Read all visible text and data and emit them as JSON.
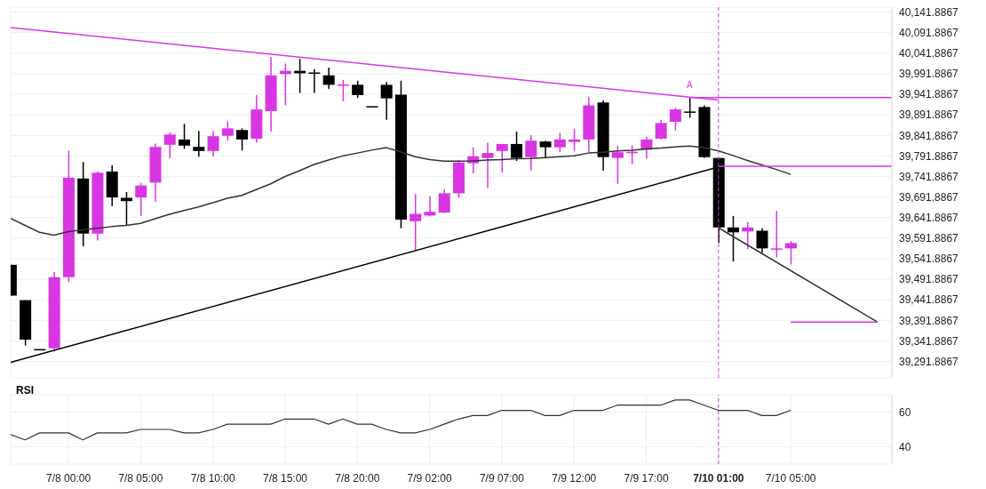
{
  "chart_data": [
    {
      "type": "candlestick",
      "tick_labels": "y",
      "grid": true,
      "categories": [
        null,
        null,
        null,
        null,
        "7/8 00:00",
        null,
        null,
        null,
        null,
        "7/8 05:00",
        null,
        null,
        null,
        null,
        "7/8 10:00",
        null,
        null,
        null,
        null,
        "7/8 15:00",
        null,
        null,
        null,
        null,
        "7/8 20:00",
        null,
        null,
        null,
        null,
        "7/9 02:00",
        null,
        null,
        null,
        null,
        "7/9 07:00",
        null,
        null,
        null,
        null,
        "7/9 12:00",
        null,
        null,
        null,
        null,
        "7/9 17:00",
        null,
        null,
        null,
        null,
        "7/10 01:00",
        null,
        null,
        null,
        null,
        "7/10 05:00",
        null,
        null,
        null,
        null,
        null,
        null,
        null
      ],
      "ohlc": [
        [
          39527,
          39527,
          39452,
          39452
        ],
        [
          39441,
          39441,
          39331,
          39345
        ],
        [
          39322,
          39322,
          39322,
          39322
        ],
        [
          39324,
          39510,
          39317,
          39497
        ],
        [
          39497,
          39805,
          39485,
          39739
        ],
        [
          39737,
          39777,
          39572,
          39603
        ],
        [
          39603,
          39754,
          39586,
          39751
        ],
        [
          39754,
          39769,
          39670,
          39691
        ],
        [
          39690,
          39704,
          39623,
          39682
        ],
        [
          39691,
          39726,
          39646,
          39720
        ],
        [
          39727,
          39822,
          39681,
          39814
        ],
        [
          39819,
          39849,
          39786,
          39844
        ],
        [
          39832,
          39870,
          39809,
          39817
        ],
        [
          39814,
          39853,
          39790,
          39804
        ],
        [
          39804,
          39853,
          39790,
          39840
        ],
        [
          39841,
          39876,
          39829,
          39859
        ],
        [
          39855,
          39859,
          39805,
          39832
        ],
        [
          39834,
          39940,
          39824,
          39905
        ],
        [
          39901,
          40033,
          39851,
          39988
        ],
        [
          39991,
          40017,
          39915,
          39999
        ],
        [
          39999,
          40028,
          39945,
          39993
        ],
        [
          39995,
          40003,
          39945,
          39994
        ],
        [
          39988,
          40007,
          39955,
          39965
        ],
        [
          39966,
          39977,
          39925,
          39966
        ],
        [
          39965,
          39975,
          39933,
          39940
        ],
        [
          39913,
          39913,
          39913,
          39913
        ],
        [
          39965,
          39972,
          39880,
          39932
        ],
        [
          39941,
          39975,
          39616,
          39637
        ],
        [
          39633,
          39699,
          39561,
          39651
        ],
        [
          39647,
          39694,
          39645,
          39656
        ],
        [
          39654,
          39711,
          39653,
          39701
        ],
        [
          39701,
          39781,
          39690,
          39776
        ],
        [
          39774,
          39813,
          39749,
          39791
        ],
        [
          39787,
          39824,
          39714,
          39799
        ],
        [
          39804,
          39821,
          39751,
          39821
        ],
        [
          39821,
          39851,
          39780,
          39787
        ],
        [
          39789,
          39842,
          39756,
          39829
        ],
        [
          39827,
          39829,
          39786,
          39813
        ],
        [
          39813,
          39848,
          39801,
          39832
        ],
        [
          39826,
          39858,
          39804,
          39832
        ],
        [
          39832,
          39936,
          39801,
          39915
        ],
        [
          39922,
          39927,
          39756,
          39789
        ],
        [
          39787,
          39817,
          39724,
          39801
        ],
        [
          39802,
          39817,
          39772,
          39802
        ],
        [
          39807,
          39839,
          39785,
          39832
        ],
        [
          39834,
          39880,
          39832,
          39872
        ],
        [
          39875,
          39909,
          39854,
          39905
        ],
        [
          39900,
          39933,
          39885,
          39899
        ],
        [
          39911,
          39915,
          39787,
          39789
        ],
        [
          39787,
          39787,
          39580,
          39618
        ],
        [
          39618,
          39646,
          39535,
          39606
        ],
        [
          39608,
          39631,
          39565,
          39618
        ],
        [
          39610,
          39616,
          39556,
          39567
        ],
        [
          39567,
          39658,
          39545,
          39567
        ],
        [
          39567,
          39585,
          39528,
          39580
        ],
        null,
        null,
        null,
        null,
        null,
        null,
        null
      ],
      "colors": [
        "#000000",
        "#000000",
        "#000000",
        "#d936e3",
        "#d936e3",
        "#000000",
        "#d936e3",
        "#000000",
        "#000000",
        "#d936e3",
        "#d936e3",
        "#d936e3",
        "#000000",
        "#000000",
        "#d936e3",
        "#d936e3",
        "#000000",
        "#d936e3",
        "#d936e3",
        "#d936e3",
        "#000000",
        "#000000",
        "#000000",
        "#d936e3",
        "#000000",
        "#000000",
        "#000000",
        "#000000",
        "#d936e3",
        "#d936e3",
        "#d936e3",
        "#d936e3",
        "#d936e3",
        "#d936e3",
        "#d936e3",
        "#000000",
        "#d936e3",
        "#000000",
        "#d936e3",
        "#d936e3",
        "#d936e3",
        "#000000",
        "#d936e3",
        "#d936e3",
        "#d936e3",
        "#d936e3",
        "#d936e3",
        "#000000",
        "#000000",
        "#000000",
        "#000000",
        "#d936e3",
        "#000000",
        "#d936e3",
        "#d936e3",
        null,
        null,
        null,
        null,
        null,
        null,
        null
      ],
      "series": [
        {
          "type": "line",
          "color": "#333333",
          "values": [
            39640,
            39623,
            39606,
            39599,
            39608,
            39612,
            39616,
            39620,
            39623,
            39628,
            39639,
            39650,
            39659,
            39668,
            39678,
            39689,
            39696,
            39710,
            39724,
            39742,
            39756,
            39771,
            39782,
            39792,
            39799,
            39806,
            39812,
            39802,
            39790,
            39783,
            39779,
            39779,
            39780,
            39782,
            39783,
            39785,
            39786,
            39788,
            39790,
            39792,
            39799,
            39801,
            39804,
            39806,
            39809,
            39811,
            39814,
            39816,
            39812,
            39804,
            39793,
            39781,
            39770,
            39759,
            39747,
            null,
            null,
            null,
            null,
            null,
            null,
            null
          ]
        },
        {
          "type": "line",
          "color": "#d936e3",
          "values": [
            40104,
            null,
            null,
            null,
            null,
            null,
            null,
            null,
            null,
            null,
            null,
            null,
            null,
            null,
            null,
            null,
            null,
            null,
            null,
            null,
            null,
            null,
            null,
            null,
            null,
            null,
            null,
            null,
            null,
            null,
            null,
            null,
            null,
            null,
            null,
            null,
            null,
            null,
            null,
            null,
            null,
            null,
            null,
            null,
            null,
            null,
            null,
            null,
            null,
            39928,
            null,
            null,
            null,
            null,
            null,
            null,
            null,
            null,
            null,
            null,
            null,
            null
          ]
        },
        {
          "type": "line",
          "color": "#000000",
          "values": [
            39290,
            null,
            null,
            null,
            null,
            null,
            null,
            null,
            null,
            null,
            null,
            null,
            null,
            null,
            null,
            null,
            null,
            null,
            null,
            null,
            null,
            null,
            null,
            null,
            null,
            null,
            null,
            null,
            null,
            null,
            null,
            null,
            null,
            null,
            null,
            null,
            null,
            null,
            null,
            null,
            null,
            null,
            null,
            null,
            null,
            null,
            null,
            null,
            null,
            39765,
            null,
            null,
            null,
            null,
            null,
            null,
            null,
            null,
            null,
            null,
            null,
            null
          ]
        },
        {
          "type": "line",
          "color": "#d936e3",
          "values": [
            null,
            null,
            null,
            null,
            null,
            null,
            null,
            null,
            null,
            null,
            null,
            null,
            null,
            null,
            null,
            null,
            null,
            null,
            null,
            null,
            null,
            null,
            null,
            null,
            null,
            null,
            null,
            null,
            null,
            null,
            null,
            null,
            null,
            null,
            null,
            null,
            null,
            null,
            null,
            null,
            null,
            null,
            null,
            null,
            null,
            null,
            null,
            39934,
            null,
            null,
            null,
            null,
            null,
            null,
            null,
            null,
            null,
            null,
            null,
            null,
            null,
            39934
          ]
        },
        {
          "type": "line",
          "color": "#d936e3",
          "values": [
            null,
            null,
            null,
            null,
            null,
            null,
            null,
            null,
            null,
            null,
            null,
            null,
            null,
            null,
            null,
            null,
            null,
            null,
            null,
            null,
            null,
            null,
            null,
            null,
            null,
            null,
            null,
            null,
            null,
            null,
            null,
            null,
            null,
            null,
            null,
            null,
            null,
            null,
            null,
            null,
            null,
            null,
            null,
            null,
            null,
            null,
            null,
            null,
            null,
            39767,
            null,
            null,
            null,
            null,
            null,
            null,
            null,
            null,
            null,
            null,
            null,
            39767
          ]
        },
        {
          "type": "line",
          "color": "#333333",
          "values": [
            null,
            null,
            null,
            null,
            null,
            null,
            null,
            null,
            null,
            null,
            null,
            null,
            null,
            null,
            null,
            null,
            null,
            null,
            null,
            null,
            null,
            null,
            null,
            null,
            null,
            null,
            null,
            null,
            null,
            null,
            null,
            null,
            null,
            null,
            null,
            null,
            null,
            null,
            null,
            null,
            null,
            null,
            null,
            null,
            null,
            null,
            null,
            null,
            null,
            39617,
            null,
            null,
            null,
            null,
            null,
            null,
            null,
            null,
            null,
            null,
            39388,
            null
          ]
        },
        {
          "type": "line",
          "color": "#d936e3",
          "values": [
            null,
            null,
            null,
            null,
            null,
            null,
            null,
            null,
            null,
            null,
            null,
            null,
            null,
            null,
            null,
            null,
            null,
            null,
            null,
            null,
            null,
            null,
            null,
            null,
            null,
            null,
            null,
            null,
            null,
            null,
            null,
            null,
            null,
            null,
            null,
            null,
            null,
            null,
            null,
            null,
            null,
            null,
            null,
            null,
            null,
            null,
            null,
            null,
            null,
            null,
            null,
            null,
            null,
            null,
            39388,
            null,
            null,
            null,
            null,
            null,
            39388,
            null
          ]
        }
      ],
      "ylim": [
        39252,
        40154
      ],
      "yticks": [
        {
          "value": 39291.8867,
          "label": "39,291.8867"
        },
        {
          "value": 39341.8867,
          "label": "39,341.8867"
        },
        {
          "value": 39391.8867,
          "label": "39,391.8867"
        },
        {
          "value": 39441.8867,
          "label": "39,441.8867"
        },
        {
          "value": 39491.8867,
          "label": "39,491.8867"
        },
        {
          "value": 39541.8867,
          "label": "39,541.8867"
        },
        {
          "value": 39591.8867,
          "label": "39,591.8867"
        },
        {
          "value": 39641.8867,
          "label": "39,641.8867"
        },
        {
          "value": 39691.8867,
          "label": "39,691.8867"
        },
        {
          "value": 39741.8867,
          "label": "39,741.8867"
        },
        {
          "value": 39791.8867,
          "label": "39,791.8867"
        },
        {
          "value": 39841.8867,
          "label": "39,841.8867"
        },
        {
          "value": 39891.8867,
          "label": "39,891.8867"
        },
        {
          "value": 39941.8867,
          "label": "39,941.8867"
        },
        {
          "value": 39991.8867,
          "label": "39,991.8867"
        },
        {
          "value": 40041.8867,
          "label": "40,041.8867"
        },
        {
          "value": 40091.8867,
          "label": "40,091.8867"
        },
        {
          "value": 40141.8867,
          "label": "40,141.8867"
        }
      ],
      "ref_lines": [
        {
          "axis": "x",
          "value": "7/10 01:00",
          "color": "#d936e3",
          "line_style": "dashed"
        }
      ],
      "annotations": [
        {
          "text": "A",
          "y": 39946
        }
      ]
    },
    {
      "type": "line",
      "title": "RSI",
      "grid": true,
      "color": "#333333",
      "categories": [
        null,
        null,
        null,
        null,
        "7/8 00:00",
        null,
        null,
        null,
        null,
        "7/8 05:00",
        null,
        null,
        null,
        null,
        "7/8 10:00",
        null,
        null,
        null,
        null,
        "7/8 15:00",
        null,
        null,
        null,
        null,
        "7/8 20:00",
        null,
        null,
        null,
        null,
        "7/9 02:00",
        null,
        null,
        null,
        null,
        "7/9 07:00",
        null,
        null,
        null,
        null,
        "7/9 12:00",
        null,
        null,
        null,
        null,
        "7/9 17:00",
        null,
        null,
        null,
        null,
        "7/10 01:00",
        null,
        null,
        null,
        null,
        "7/10 05:00",
        null,
        null,
        null,
        null,
        null,
        null,
        null
      ],
      "values": [
        47,
        44,
        48,
        48,
        48,
        44,
        48,
        48,
        48,
        50,
        50,
        50,
        48,
        48,
        50,
        53,
        53,
        53,
        53,
        56,
        56,
        56,
        53,
        56,
        53,
        53,
        50,
        48,
        48,
        50,
        53,
        56,
        58,
        58,
        61,
        61,
        61,
        58,
        58,
        61,
        61,
        61,
        64,
        64,
        64,
        64,
        67,
        67,
        64,
        61,
        61,
        61,
        58,
        58,
        61,
        null,
        null,
        null,
        null,
        null,
        null,
        null
      ],
      "ylim": [
        30,
        70
      ],
      "yticks": [
        40,
        60
      ],
      "ref_lines": [
        {
          "axis": "x",
          "value": "7/10 01:00",
          "color": "#d936e3",
          "line_style": "dashed"
        }
      ]
    }
  ]
}
